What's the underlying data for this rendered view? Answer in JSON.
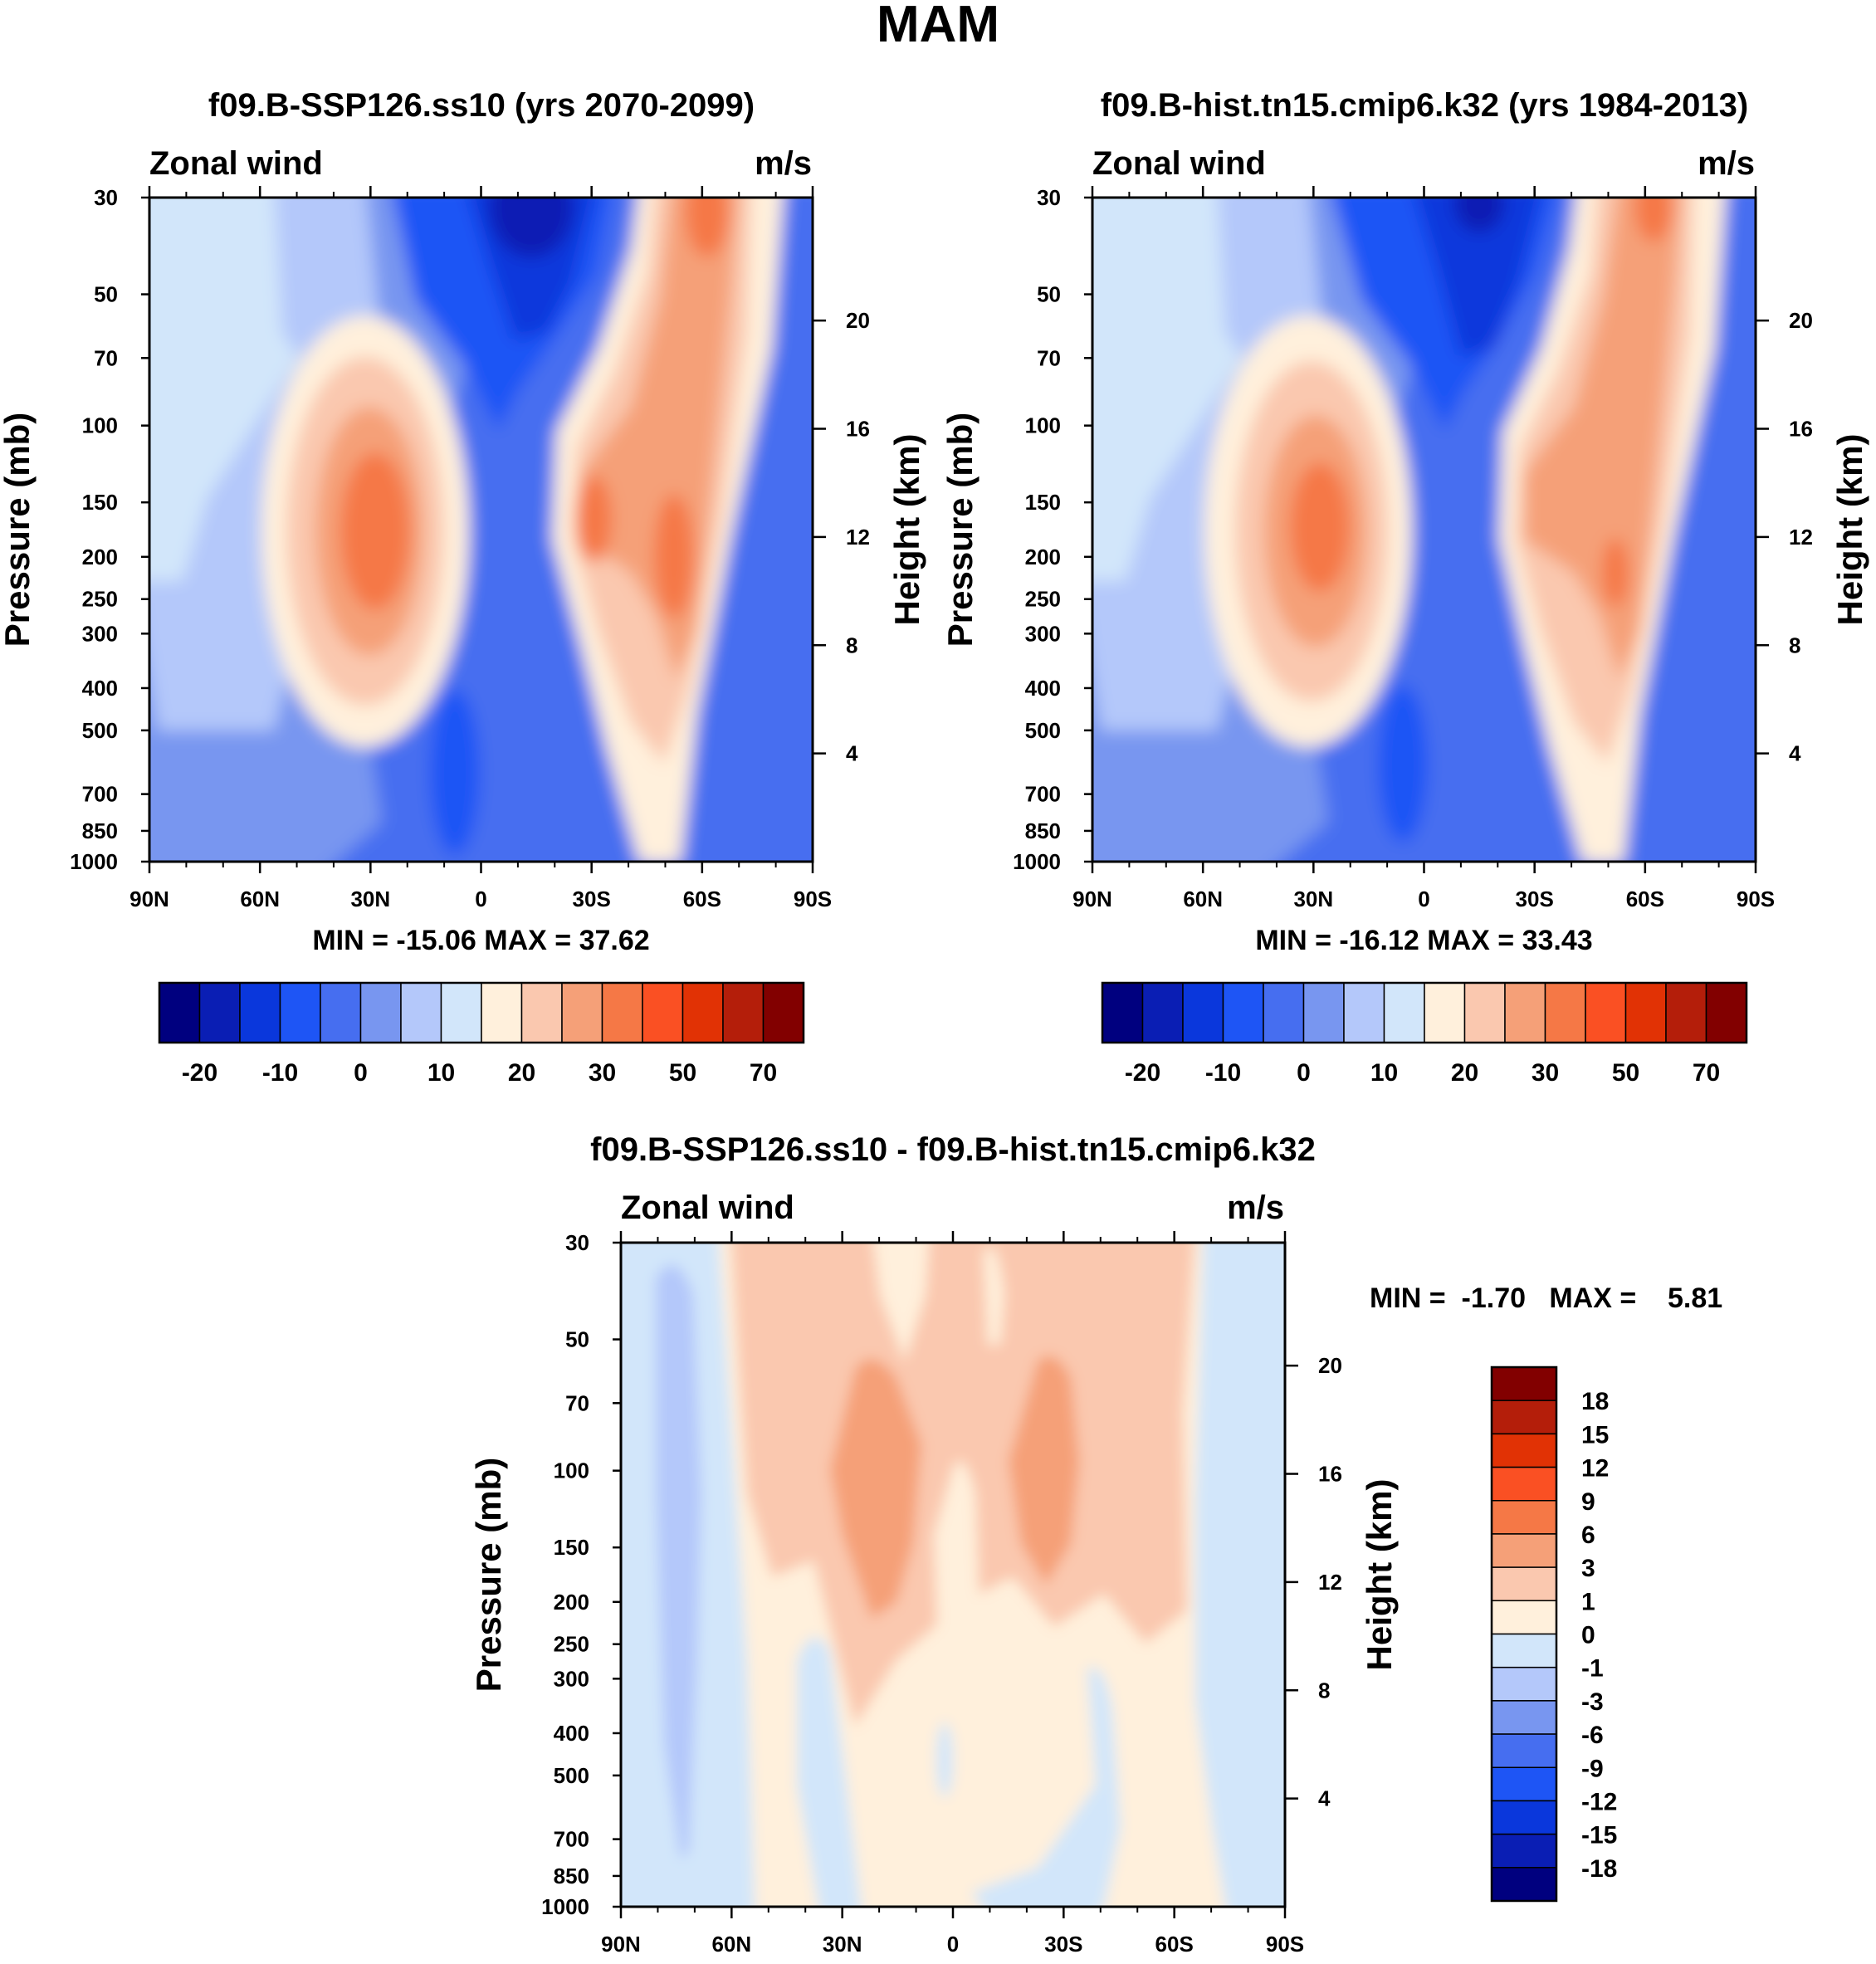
{
  "figure_title": "MAM",
  "chart_data": [
    {
      "id": "future",
      "type": "contour",
      "title": "f09.B-SSP126.ss10 (yrs 2070-2099)",
      "left_string": "Zonal wind",
      "right_string": "m/s",
      "ylabel": "Pressure (mb)",
      "ylabel_right": "Height (km)",
      "x_ticks": [
        "90N",
        "60N",
        "30N",
        "0",
        "30S",
        "60S",
        "90S"
      ],
      "pressure_ticks": [
        "30",
        "50",
        "70",
        "100",
        "150",
        "200",
        "250",
        "300",
        "400",
        "500",
        "700",
        "850",
        "1000"
      ],
      "height_ticks": [
        "20",
        "16",
        "12",
        "8",
        "4"
      ],
      "min_max": "MIN = -15.06   MAX =  37.62",
      "colorbar_labels": [
        "-20",
        "-10",
        "0",
        "10",
        "20",
        "30",
        "50",
        "70"
      ],
      "jets": [
        {
          "lat": 28,
          "pressure": 180,
          "max": 37.62
        },
        {
          "lat": -35,
          "pressure": 170,
          "max": 33
        },
        {
          "lat": -52,
          "pressure": 210,
          "max": 34
        }
      ],
      "easterly_min": -15.06
    },
    {
      "id": "historical",
      "type": "contour",
      "title": "f09.B-hist.tn15.cmip6.k32 (yrs 1984-2013)",
      "left_string": "Zonal wind",
      "right_string": "m/s",
      "ylabel": "Pressure (mb)",
      "ylabel_right": "Height (km)",
      "x_ticks": [
        "90N",
        "60N",
        "30N",
        "0",
        "30S",
        "60S",
        "90S"
      ],
      "pressure_ticks": [
        "30",
        "50",
        "70",
        "100",
        "150",
        "200",
        "250",
        "300",
        "400",
        "500",
        "700",
        "850",
        "1000"
      ],
      "height_ticks": [
        "20",
        "16",
        "12",
        "8",
        "4"
      ],
      "min_max": "MIN = -16.12   MAX =  33.43",
      "colorbar_labels": [
        "-20",
        "-10",
        "0",
        "10",
        "20",
        "30",
        "50",
        "70"
      ],
      "jets": [
        {
          "lat": 28,
          "pressure": 175,
          "max": 33.43
        },
        {
          "lat": -53,
          "pressure": 215,
          "max": 31
        }
      ],
      "easterly_min": -16.12
    },
    {
      "id": "difference",
      "type": "contour",
      "title": "f09.B-SSP126.ss10 - f09.B-hist.tn15.cmip6.k32",
      "left_string": "Zonal wind",
      "right_string": "m/s",
      "ylabel": "Pressure (mb)",
      "ylabel_right": "Height (km)",
      "x_ticks": [
        "90N",
        "60N",
        "30N",
        "0",
        "30S",
        "60S",
        "90S"
      ],
      "pressure_ticks": [
        "30",
        "50",
        "70",
        "100",
        "150",
        "200",
        "250",
        "300",
        "400",
        "500",
        "700",
        "850",
        "1000"
      ],
      "height_ticks": [
        "20",
        "16",
        "12",
        "8",
        "4"
      ],
      "min_max": "MIN =  -1.70   MAX =    5.81",
      "colorbar_labels": [
        "18",
        "15",
        "12",
        "9",
        "6",
        "3",
        "1",
        "0",
        "-1",
        "-3",
        "-6",
        "-9",
        "-12",
        "-15",
        "-18"
      ],
      "features": [
        {
          "lat": 20,
          "pressure": 110,
          "max": 5.81
        },
        {
          "lat": -22,
          "pressure": 110,
          "max": 5.5
        },
        {
          "lat": 75,
          "pressure": 200,
          "min": -1.7
        }
      ]
    }
  ],
  "colors": {
    "wind_scale": [
      "#00007f",
      "#0a1eb4",
      "#0a37dc",
      "#1e55f5",
      "#466ef0",
      "#7896f0",
      "#b4c8fa",
      "#d2e6fa",
      "#fff0dc",
      "#fac8af",
      "#f5a078",
      "#f57846",
      "#fa5023",
      "#e13205",
      "#b41e0a",
      "#820000"
    ],
    "diff_scale": [
      "#820000",
      "#b41e0a",
      "#e13205",
      "#fa5023",
      "#f57846",
      "#f5a078",
      "#fac8af",
      "#fff0dc",
      "#d2e6fa",
      "#b4c8fa",
      "#7896f0",
      "#466ef0",
      "#1e55f5",
      "#0a37dc",
      "#0a1eb4",
      "#00007f"
    ]
  }
}
